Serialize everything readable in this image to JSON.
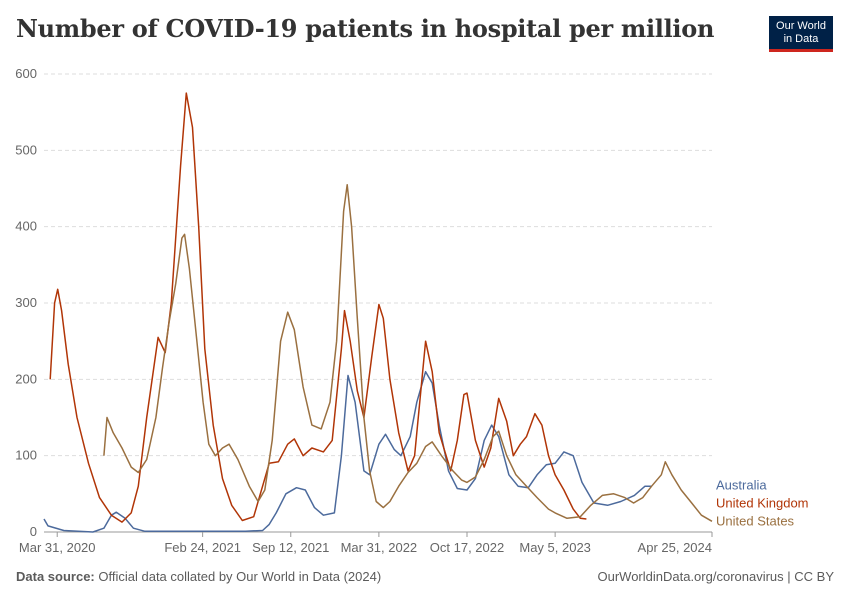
{
  "header": {
    "title": "Number of COVID-19 patients in hospital per million",
    "logo_line1": "Our World",
    "logo_line2": "in Data"
  },
  "footer": {
    "source_label": "Data source:",
    "source_text": "Official data collated by Our World in Data (2024)",
    "right_text": "OurWorldinData.org/coronavirus | CC BY"
  },
  "chart_data": {
    "type": "line",
    "title": "Number of COVID-19 patients in hospital per million",
    "xlabel": "",
    "ylabel": "",
    "ylim": [
      0,
      600
    ],
    "yticks": [
      0,
      100,
      200,
      300,
      400,
      500,
      600
    ],
    "xlim": [
      "2020-03-01",
      "2024-04-25"
    ],
    "xticks": [
      "Mar 31, 2020",
      "Feb 24, 2021",
      "Sep 12, 2021",
      "Mar 31, 2022",
      "Oct 17, 2022",
      "May 5, 2023",
      "Apr 25, 2024"
    ],
    "xtick_dates": [
      "2020-03-31",
      "2021-02-24",
      "2021-09-12",
      "2022-03-31",
      "2022-10-17",
      "2023-05-05",
      "2024-04-25"
    ],
    "grid": true,
    "legend": "right",
    "series": [
      {
        "name": "Australia",
        "color": "#4c6a9c",
        "points": [
          [
            "2020-03-01",
            17
          ],
          [
            "2020-03-10",
            8
          ],
          [
            "2020-04-15",
            2
          ],
          [
            "2020-06-20",
            0
          ],
          [
            "2020-07-15",
            5
          ],
          [
            "2020-08-01",
            22
          ],
          [
            "2020-08-12",
            26
          ],
          [
            "2020-09-01",
            18
          ],
          [
            "2020-09-20",
            5
          ],
          [
            "2020-10-15",
            1
          ],
          [
            "2021-02-01",
            1
          ],
          [
            "2021-06-01",
            1
          ],
          [
            "2021-07-10",
            2
          ],
          [
            "2021-07-25",
            10
          ],
          [
            "2021-08-10",
            25
          ],
          [
            "2021-09-01",
            50
          ],
          [
            "2021-09-25",
            58
          ],
          [
            "2021-10-15",
            55
          ],
          [
            "2021-11-05",
            32
          ],
          [
            "2021-11-25",
            22
          ],
          [
            "2021-12-20",
            25
          ],
          [
            "2022-01-05",
            100
          ],
          [
            "2022-01-20",
            205
          ],
          [
            "2022-02-05",
            170
          ],
          [
            "2022-02-25",
            80
          ],
          [
            "2022-03-10",
            75
          ],
          [
            "2022-03-31",
            115
          ],
          [
            "2022-04-15",
            128
          ],
          [
            "2022-05-05",
            108
          ],
          [
            "2022-05-20",
            100
          ],
          [
            "2022-06-10",
            125
          ],
          [
            "2022-06-25",
            170
          ],
          [
            "2022-07-15",
            210
          ],
          [
            "2022-07-30",
            195
          ],
          [
            "2022-08-15",
            140
          ],
          [
            "2022-09-05",
            80
          ],
          [
            "2022-09-25",
            57
          ],
          [
            "2022-10-17",
            55
          ],
          [
            "2022-11-05",
            70
          ],
          [
            "2022-11-25",
            120
          ],
          [
            "2022-12-12",
            140
          ],
          [
            "2022-12-28",
            125
          ],
          [
            "2023-01-20",
            75
          ],
          [
            "2023-02-10",
            60
          ],
          [
            "2023-03-05",
            58
          ],
          [
            "2023-03-25",
            75
          ],
          [
            "2023-04-15",
            88
          ],
          [
            "2023-05-05",
            90
          ],
          [
            "2023-05-25",
            105
          ],
          [
            "2023-06-15",
            100
          ],
          [
            "2023-07-05",
            65
          ],
          [
            "2023-08-01",
            38
          ],
          [
            "2023-09-01",
            35
          ],
          [
            "2023-10-01",
            40
          ],
          [
            "2023-11-01",
            48
          ],
          [
            "2023-11-25",
            60
          ],
          [
            "2023-12-10",
            60
          ]
        ]
      },
      {
        "name": "United Kingdom",
        "color": "#b13507",
        "points": [
          [
            "2020-03-15",
            200
          ],
          [
            "2020-03-25",
            300
          ],
          [
            "2020-04-01",
            318
          ],
          [
            "2020-04-10",
            290
          ],
          [
            "2020-04-25",
            220
          ],
          [
            "2020-05-15",
            150
          ],
          [
            "2020-06-10",
            90
          ],
          [
            "2020-07-05",
            45
          ],
          [
            "2020-08-01",
            22
          ],
          [
            "2020-08-25",
            13
          ],
          [
            "2020-09-15",
            25
          ],
          [
            "2020-10-01",
            60
          ],
          [
            "2020-10-20",
            150
          ],
          [
            "2020-11-15",
            255
          ],
          [
            "2020-12-01",
            235
          ],
          [
            "2020-12-15",
            300
          ],
          [
            "2021-01-05",
            480
          ],
          [
            "2021-01-18",
            575
          ],
          [
            "2021-02-01",
            530
          ],
          [
            "2021-02-15",
            400
          ],
          [
            "2021-03-01",
            240
          ],
          [
            "2021-03-20",
            140
          ],
          [
            "2021-04-10",
            70
          ],
          [
            "2021-05-01",
            35
          ],
          [
            "2021-05-25",
            15
          ],
          [
            "2021-06-20",
            20
          ],
          [
            "2021-07-15",
            70
          ],
          [
            "2021-07-25",
            90
          ],
          [
            "2021-08-15",
            92
          ],
          [
            "2021-09-05",
            115
          ],
          [
            "2021-09-20",
            122
          ],
          [
            "2021-10-10",
            100
          ],
          [
            "2021-10-30",
            110
          ],
          [
            "2021-11-25",
            105
          ],
          [
            "2021-12-15",
            120
          ],
          [
            "2022-01-05",
            240
          ],
          [
            "2022-01-12",
            290
          ],
          [
            "2022-01-25",
            250
          ],
          [
            "2022-02-10",
            185
          ],
          [
            "2022-02-25",
            150
          ],
          [
            "2022-03-15",
            230
          ],
          [
            "2022-03-31",
            298
          ],
          [
            "2022-04-10",
            280
          ],
          [
            "2022-04-25",
            200
          ],
          [
            "2022-05-15",
            130
          ],
          [
            "2022-06-05",
            80
          ],
          [
            "2022-06-20",
            100
          ],
          [
            "2022-07-05",
            190
          ],
          [
            "2022-07-15",
            250
          ],
          [
            "2022-07-30",
            210
          ],
          [
            "2022-08-15",
            130
          ],
          [
            "2022-09-10",
            80
          ],
          [
            "2022-09-25",
            120
          ],
          [
            "2022-10-10",
            180
          ],
          [
            "2022-10-17",
            182
          ],
          [
            "2022-11-05",
            120
          ],
          [
            "2022-11-25",
            85
          ],
          [
            "2022-12-10",
            110
          ],
          [
            "2022-12-28",
            175
          ],
          [
            "2023-01-15",
            145
          ],
          [
            "2023-01-30",
            100
          ],
          [
            "2023-02-15",
            115
          ],
          [
            "2023-03-01",
            125
          ],
          [
            "2023-03-20",
            155
          ],
          [
            "2023-04-05",
            140
          ],
          [
            "2023-04-20",
            100
          ],
          [
            "2023-05-05",
            75
          ],
          [
            "2023-05-25",
            55
          ],
          [
            "2023-06-15",
            30
          ],
          [
            "2023-07-01",
            18
          ],
          [
            "2023-07-15",
            17
          ]
        ]
      },
      {
        "name": "United States",
        "color": "#9a7040",
        "points": [
          [
            "2020-07-15",
            100
          ],
          [
            "2020-07-22",
            150
          ],
          [
            "2020-08-05",
            130
          ],
          [
            "2020-08-25",
            110
          ],
          [
            "2020-09-15",
            85
          ],
          [
            "2020-10-01",
            78
          ],
          [
            "2020-10-20",
            95
          ],
          [
            "2020-11-10",
            150
          ],
          [
            "2020-11-25",
            215
          ],
          [
            "2020-12-10",
            275
          ],
          [
            "2020-12-25",
            325
          ],
          [
            "2021-01-08",
            385
          ],
          [
            "2021-01-14",
            390
          ],
          [
            "2021-01-25",
            345
          ],
          [
            "2021-02-10",
            255
          ],
          [
            "2021-02-25",
            170
          ],
          [
            "2021-03-10",
            115
          ],
          [
            "2021-03-25",
            100
          ],
          [
            "2021-04-10",
            110
          ],
          [
            "2021-04-25",
            115
          ],
          [
            "2021-05-15",
            95
          ],
          [
            "2021-06-10",
            60
          ],
          [
            "2021-06-30",
            40
          ],
          [
            "2021-07-15",
            55
          ],
          [
            "2021-08-01",
            120
          ],
          [
            "2021-08-20",
            250
          ],
          [
            "2021-09-05",
            288
          ],
          [
            "2021-09-20",
            265
          ],
          [
            "2021-10-10",
            190
          ],
          [
            "2021-10-30",
            140
          ],
          [
            "2021-11-20",
            135
          ],
          [
            "2021-12-10",
            170
          ],
          [
            "2021-12-25",
            250
          ],
          [
            "2022-01-10",
            420
          ],
          [
            "2022-01-18",
            455
          ],
          [
            "2022-01-28",
            400
          ],
          [
            "2022-02-10",
            280
          ],
          [
            "2022-02-25",
            150
          ],
          [
            "2022-03-10",
            80
          ],
          [
            "2022-03-25",
            40
          ],
          [
            "2022-04-10",
            32
          ],
          [
            "2022-04-25",
            40
          ],
          [
            "2022-05-15",
            60
          ],
          [
            "2022-06-05",
            78
          ],
          [
            "2022-06-25",
            90
          ],
          [
            "2022-07-15",
            112
          ],
          [
            "2022-07-30",
            118
          ],
          [
            "2022-08-20",
            100
          ],
          [
            "2022-09-15",
            80
          ],
          [
            "2022-10-05",
            68
          ],
          [
            "2022-10-17",
            65
          ],
          [
            "2022-11-05",
            72
          ],
          [
            "2022-11-25",
            95
          ],
          [
            "2022-12-15",
            125
          ],
          [
            "2022-12-28",
            132
          ],
          [
            "2023-01-15",
            100
          ],
          [
            "2023-02-05",
            75
          ],
          [
            "2023-03-01",
            60
          ],
          [
            "2023-03-25",
            45
          ],
          [
            "2023-04-20",
            30
          ],
          [
            "2023-05-05",
            25
          ],
          [
            "2023-06-01",
            18
          ],
          [
            "2023-07-01",
            20
          ],
          [
            "2023-07-25",
            35
          ],
          [
            "2023-08-20",
            48
          ],
          [
            "2023-09-15",
            50
          ],
          [
            "2023-10-10",
            45
          ],
          [
            "2023-10-30",
            38
          ],
          [
            "2023-11-20",
            45
          ],
          [
            "2023-12-10",
            60
          ],
          [
            "2024-01-01",
            75
          ],
          [
            "2024-01-10",
            92
          ],
          [
            "2024-01-25",
            75
          ],
          [
            "2024-02-15",
            55
          ],
          [
            "2024-03-10",
            38
          ],
          [
            "2024-04-01",
            22
          ],
          [
            "2024-04-25",
            14
          ]
        ]
      }
    ]
  }
}
